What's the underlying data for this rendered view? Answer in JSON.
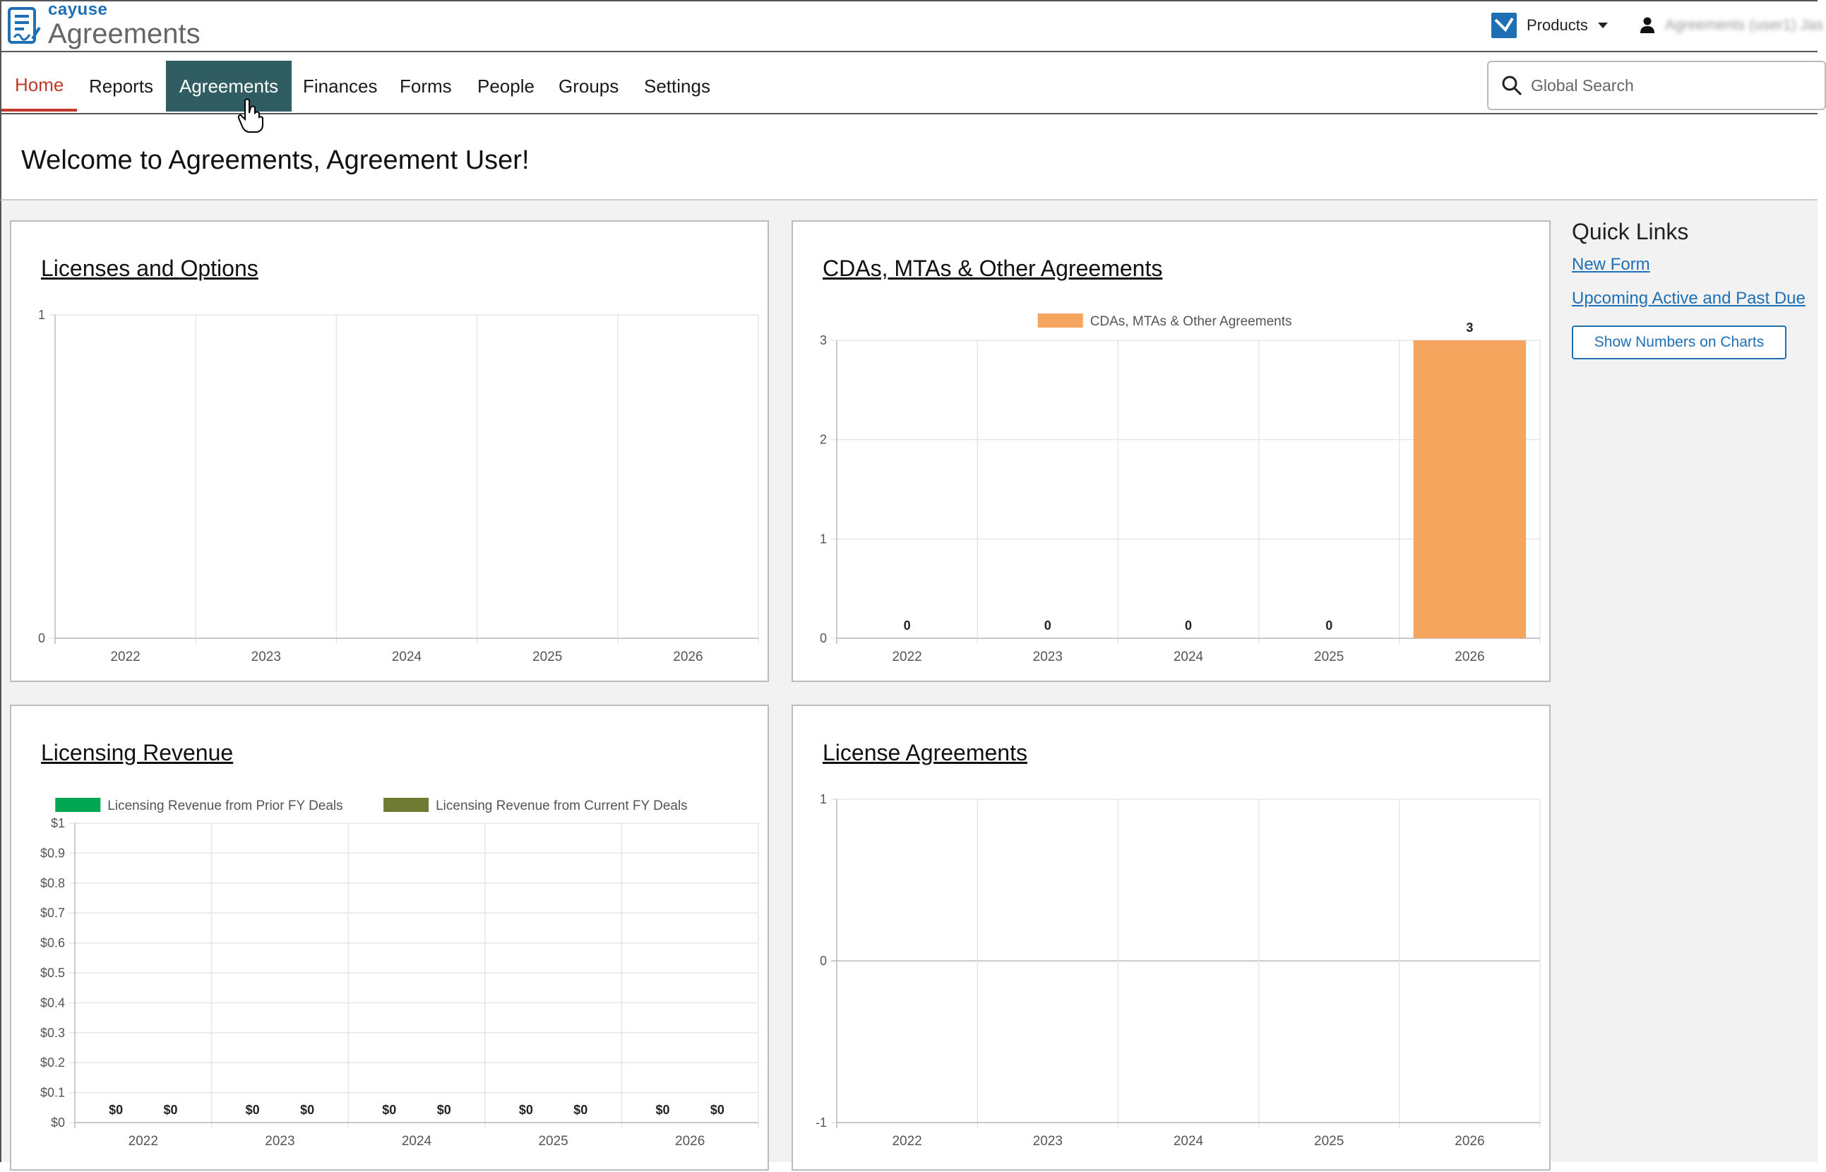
{
  "brand": {
    "small": "cayuse",
    "big": "Agreements"
  },
  "header": {
    "products_label": "Products",
    "user_name": "Agreements (user1) Jas"
  },
  "nav": {
    "items": [
      {
        "label": "Home"
      },
      {
        "label": "Reports"
      },
      {
        "label": "Agreements"
      },
      {
        "label": "Finances"
      },
      {
        "label": "Forms"
      },
      {
        "label": "People"
      },
      {
        "label": "Groups"
      },
      {
        "label": "Settings"
      }
    ],
    "active": "Agreements",
    "current": "Home"
  },
  "search": {
    "placeholder": "Global Search"
  },
  "welcome": "Welcome to Agreements, Agreement User!",
  "quick_links": {
    "title": "Quick Links",
    "links": [
      "New Form",
      "Upcoming Active and Past Due"
    ],
    "button": "Show Numbers on Charts"
  },
  "colors": {
    "accent": "#2f5d62",
    "home": "#c0392b",
    "link": "#1f6fb5",
    "bar": "#f5a55d",
    "prior": "#00a651",
    "current": "#6f7a32"
  },
  "chart_data": [
    {
      "title": "Licenses and Options",
      "type": "bar",
      "categories": [
        "2022",
        "2023",
        "2024",
        "2025",
        "2026"
      ],
      "series": [],
      "ylim": [
        0,
        1
      ],
      "yticks": [
        "0",
        "1"
      ],
      "grid": true
    },
    {
      "title": "CDAs, MTAs & Other Agreements",
      "type": "bar",
      "categories": [
        "2022",
        "2023",
        "2024",
        "2025",
        "2026"
      ],
      "series": [
        {
          "name": "CDAs, MTAs & Other Agreements",
          "values": [
            0,
            0,
            0,
            0,
            3
          ]
        }
      ],
      "ylim": [
        0,
        3
      ],
      "yticks": [
        "0",
        "1",
        "2",
        "3"
      ],
      "data_labels": [
        "0",
        "0",
        "0",
        "0",
        "3"
      ],
      "legend": "top",
      "grid": true
    },
    {
      "title": "Licensing Revenue",
      "type": "bar",
      "categories": [
        "2022",
        "2023",
        "2024",
        "2025",
        "2026"
      ],
      "series": [
        {
          "name": "Licensing Revenue from Prior FY Deals",
          "values": [
            0,
            0,
            0,
            0,
            0
          ]
        },
        {
          "name": "Licensing Revenue from Current FY Deals",
          "values": [
            0,
            0,
            0,
            0,
            0
          ]
        }
      ],
      "ylim": [
        0,
        1
      ],
      "yticks": [
        "$0",
        "$0.1",
        "$0.2",
        "$0.3",
        "$0.4",
        "$0.5",
        "$0.6",
        "$0.7",
        "$0.8",
        "$0.9",
        "$1"
      ],
      "data_labels": [
        "$0",
        "$0"
      ],
      "legend": "top",
      "grid": true
    },
    {
      "title": "License Agreements",
      "type": "bar",
      "categories": [
        "2022",
        "2023",
        "2024",
        "2025",
        "2026"
      ],
      "series": [],
      "ylim": [
        -1,
        1
      ],
      "yticks": [
        "-1",
        "0",
        "1"
      ],
      "grid": true
    }
  ]
}
